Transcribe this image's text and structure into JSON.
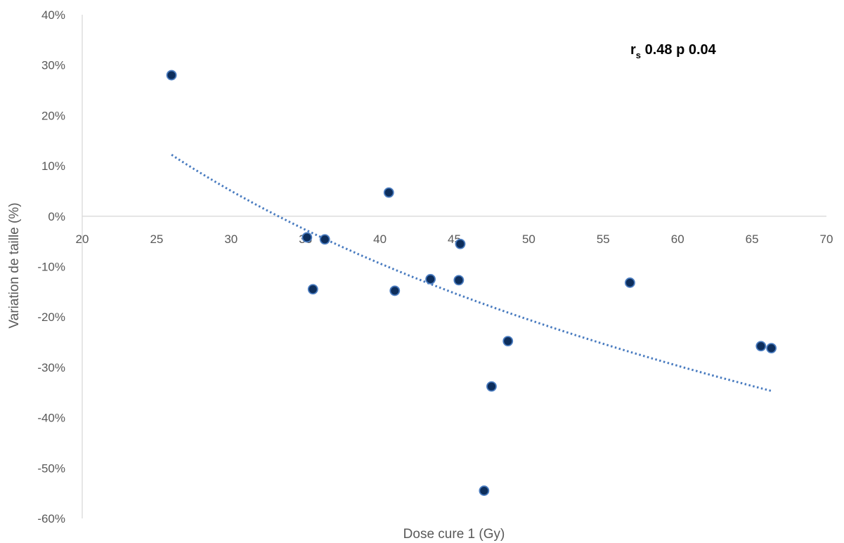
{
  "chart_data": {
    "type": "scatter",
    "xlabel": "Dose cure 1 (Gy)",
    "ylabel": "Variation de taille (%)",
    "xlim": [
      20,
      70
    ],
    "ylim": [
      -60,
      40
    ],
    "x_ticks": [
      "20",
      "25",
      "30",
      "35",
      "40",
      "45",
      "50",
      "55",
      "60",
      "65",
      "70"
    ],
    "y_ticks": [
      "40%",
      "30%",
      "20%",
      "10%",
      "0%",
      "-10%",
      "-20%",
      "-30%",
      "-40%",
      "-50%",
      "-60%"
    ],
    "annotation": {
      "r": "r",
      "sub": "s",
      "rest": " 0.48 p 0.04"
    },
    "marker_color": "#0d2e5c",
    "marker_edge_color": "#4a7cc0",
    "trend_color": "#4a7cc0",
    "trendline": {
      "type": "logarithmic",
      "x_start": 26.0,
      "x_end": 66.3
    },
    "series": [
      {
        "x": [
          26.0,
          35.1,
          35.5,
          36.3,
          40.6,
          41.0,
          43.4,
          45.3,
          45.4,
          47.0,
          47.5,
          48.6,
          56.8,
          65.6,
          66.3
        ],
        "y": [
          28.0,
          -4.2,
          -14.5,
          -4.6,
          4.7,
          -14.8,
          -12.5,
          -12.7,
          -5.5,
          -54.5,
          -33.8,
          -24.8,
          -13.2,
          -25.8,
          -26.2
        ]
      }
    ]
  }
}
